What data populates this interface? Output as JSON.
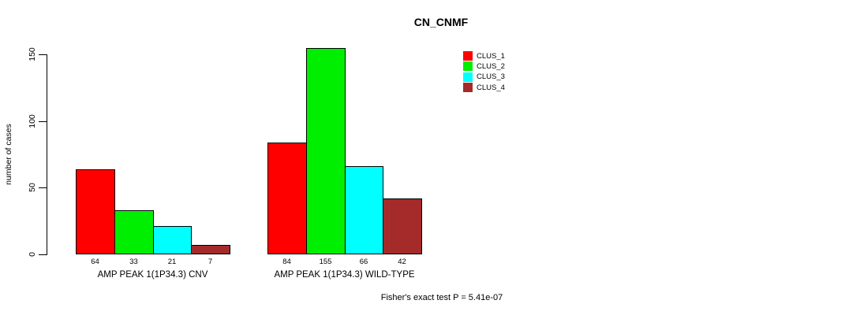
{
  "chart_data": {
    "type": "bar",
    "title": "CN_CNMF",
    "ylabel": "number of cases",
    "xlabel": "",
    "yticks": [
      0,
      50,
      100,
      150
    ],
    "ylim": [
      0,
      158
    ],
    "grid": false,
    "legend_position": "top-right",
    "categories": [
      "AMP PEAK 1(1P34.3) CNV",
      "AMP PEAK 1(1P34.3) WILD-TYPE"
    ],
    "series": [
      {
        "name": "CLUS_1",
        "color": "#FF0000",
        "values": [
          64,
          84
        ]
      },
      {
        "name": "CLUS_2",
        "color": "#00EE00",
        "values": [
          33,
          155
        ]
      },
      {
        "name": "CLUS_3",
        "color": "#00FFFF",
        "values": [
          21,
          66
        ]
      },
      {
        "name": "CLUS_4",
        "color": "#A52A2A",
        "values": [
          7,
          42
        ]
      }
    ],
    "bar_value_labels": {
      "AMP PEAK 1(1P34.3) CNV": [
        64,
        33,
        21,
        7
      ],
      "AMP PEAK 1(1P34.3) WILD-TYPE": [
        84,
        155,
        66,
        42
      ]
    },
    "annotation": "Fisher's exact test P = 5.41e-07",
    "axis_color": "#000000",
    "background_color": "#FFFFFF"
  }
}
